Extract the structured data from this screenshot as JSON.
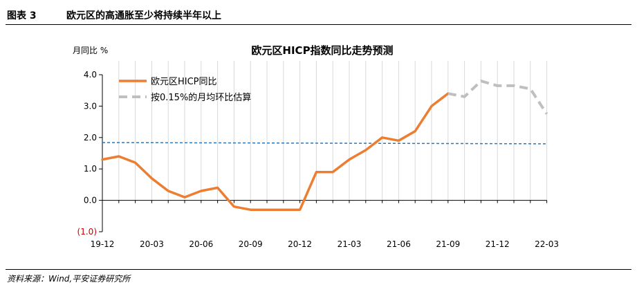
{
  "figure": {
    "number": "图表 3",
    "title": "欧元区的高通胀至少将持续半年以上",
    "source": "资料来源：Wind,平安证券研究所"
  },
  "colors": {
    "actual": "#ED7D31",
    "forecast": "#BFBFBF",
    "reference": "#2E75B6",
    "gridline": "#D9D9D9",
    "negative_label": "#C00000"
  },
  "chart_data": {
    "type": "line",
    "title": "欧元区HICP指数同比走势预测",
    "ylabel": "月同比 %",
    "ylim": [
      -1.0,
      4.0
    ],
    "yticks": [
      -1.0,
      0.0,
      1.0,
      2.0,
      3.0,
      4.0
    ],
    "ytick_labels": [
      "(1.0)",
      "0.0",
      "1.0",
      "2.0",
      "3.0",
      "4.0"
    ],
    "xtick_labels": [
      "19-12",
      "20-03",
      "20-06",
      "20-09",
      "20-12",
      "21-03",
      "21-06",
      "21-09",
      "21-12",
      "22-03"
    ],
    "grid": "vertical",
    "legend_position": "top-left",
    "x": [
      "19-12",
      "20-01",
      "20-02",
      "20-03",
      "20-04",
      "20-05",
      "20-06",
      "20-07",
      "20-08",
      "20-09",
      "20-10",
      "20-11",
      "20-12",
      "21-01",
      "21-02",
      "21-03",
      "21-04",
      "21-05",
      "21-06",
      "21-07",
      "21-08",
      "21-09",
      "21-10",
      "21-11",
      "21-12",
      "22-01",
      "22-02",
      "22-03"
    ],
    "series": [
      {
        "name": "欧元区HICP同比",
        "style": "solid",
        "values": [
          1.3,
          1.4,
          1.2,
          0.7,
          0.3,
          0.1,
          0.3,
          0.4,
          -0.2,
          -0.3,
          -0.3,
          -0.3,
          -0.3,
          0.9,
          0.9,
          1.3,
          1.6,
          2.0,
          1.9,
          2.2,
          3.0,
          3.4,
          null,
          null,
          null,
          null,
          null,
          null
        ]
      },
      {
        "name": "按0.15%的月均环比估算",
        "style": "dashed",
        "values": [
          null,
          null,
          null,
          null,
          null,
          null,
          null,
          null,
          null,
          null,
          null,
          null,
          null,
          null,
          null,
          null,
          null,
          null,
          null,
          null,
          null,
          3.4,
          3.3,
          3.8,
          3.65,
          3.65,
          3.55,
          2.75
        ]
      }
    ],
    "reference_line": {
      "start": 1.84,
      "end": 1.8,
      "style": "dashed"
    }
  }
}
